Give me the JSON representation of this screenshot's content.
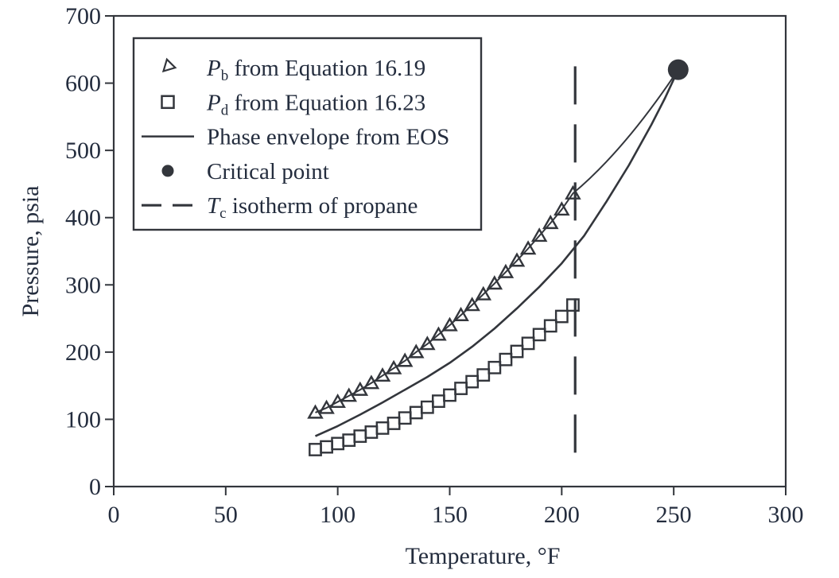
{
  "colors": {
    "background": "#ffffff",
    "ink": "#33363c",
    "text": "#242d3e"
  },
  "axes": {
    "x_label": "Temperature, °F",
    "y_label": "Pressure, psia",
    "x_tick_labels": [
      "0",
      "50",
      "100",
      "150",
      "200",
      "250",
      "300"
    ],
    "y_tick_labels": [
      "0",
      "100",
      "200",
      "300",
      "400",
      "500",
      "600",
      "700"
    ]
  },
  "legend": {
    "items": [
      {
        "marker": "triangle-open",
        "label": {
          "italic": "P",
          "sub": "b",
          "rest": " from Equation 16.19"
        }
      },
      {
        "marker": "square-open",
        "label": {
          "italic": "P",
          "sub": "d",
          "rest": " from Equation 16.23"
        }
      },
      {
        "marker": "solid-line",
        "label": {
          "italic": "",
          "sub": "",
          "rest": "Phase envelope from EOS"
        }
      },
      {
        "marker": "circle-filled",
        "label": {
          "italic": "",
          "sub": "",
          "rest": "Critical point"
        }
      },
      {
        "marker": "dashed-line",
        "label": {
          "italic": "T",
          "sub": "c",
          "rest": " isotherm of propane"
        }
      }
    ]
  },
  "chart_data": {
    "type": "line",
    "title": "",
    "xlabel": "Temperature, °F",
    "ylabel": "Pressure, psia",
    "xlim": [
      0,
      300
    ],
    "ylim": [
      0,
      700
    ],
    "x_ticks": [
      0,
      50,
      100,
      150,
      200,
      250,
      300
    ],
    "y_ticks": [
      0,
      100,
      200,
      300,
      400,
      500,
      600,
      700
    ],
    "grid": false,
    "legend_position": "upper-left",
    "series": [
      {
        "name": "Pb from Equation 16.19",
        "type": "line+marker",
        "marker": "triangle-open",
        "x": [
          90,
          95,
          100,
          105,
          110,
          115,
          120,
          125,
          130,
          135,
          140,
          145,
          150,
          155,
          160,
          165,
          170,
          175,
          180,
          185,
          190,
          195,
          200,
          205
        ],
        "y": [
          110,
          117,
          126,
          135,
          144,
          154,
          165,
          176,
          187,
          200,
          212,
          226,
          240,
          255,
          270,
          286,
          302,
          319,
          336,
          354,
          373,
          392,
          412,
          436
        ]
      },
      {
        "name": "Pd from Equation 16.23",
        "type": "scatter",
        "marker": "square-open",
        "x": [
          90,
          95,
          100,
          105,
          110,
          115,
          120,
          125,
          130,
          135,
          140,
          145,
          150,
          155,
          160,
          165,
          170,
          175,
          180,
          185,
          190,
          195,
          200,
          205
        ],
        "y": [
          55,
          59,
          64,
          69,
          75,
          81,
          87,
          94,
          102,
          110,
          118,
          127,
          136,
          146,
          156,
          166,
          177,
          189,
          201,
          213,
          226,
          239,
          253,
          270
        ]
      },
      {
        "name": "Phase envelope from EOS",
        "type": "line",
        "marker": null,
        "x": [
          90,
          100,
          110,
          120,
          130,
          140,
          150,
          160,
          170,
          180,
          190,
          200,
          210,
          220,
          230,
          240,
          246,
          252
        ],
        "y": [
          75,
          90,
          107,
          125,
          144,
          163,
          184,
          208,
          235,
          265,
          297,
          332,
          373,
          424,
          478,
          538,
          577,
          620
        ]
      },
      {
        "name": "Critical point",
        "type": "scatter",
        "marker": "circle-filled",
        "x": [
          252
        ],
        "y": [
          620
        ]
      },
      {
        "name": "Tc isotherm of propane",
        "type": "vline",
        "style": "dashed",
        "x": 206,
        "y_range": [
          28,
          625
        ]
      }
    ],
    "pb_extension_to_critical_point": {
      "from": [
        205,
        436
      ],
      "control": [
        228,
        500
      ],
      "to": [
        252,
        620
      ]
    }
  }
}
